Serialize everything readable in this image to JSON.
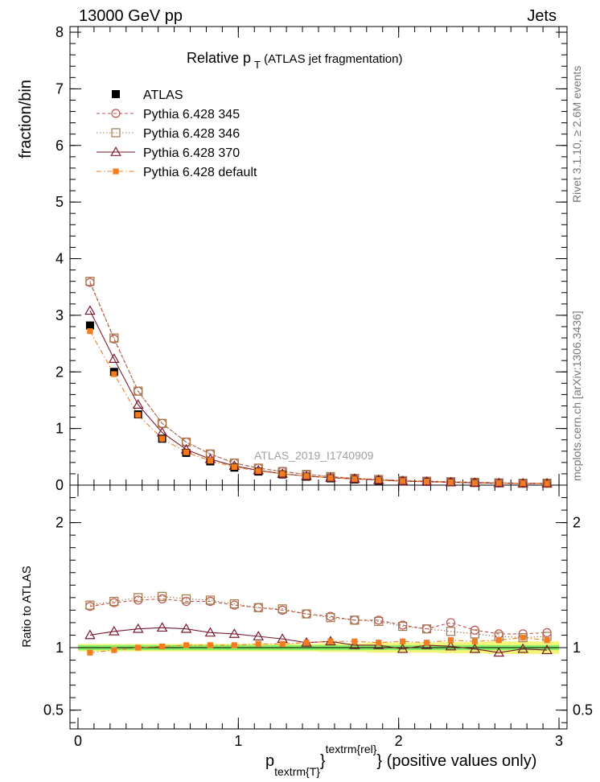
{
  "header": {
    "energy_label": "13000 GeV pp",
    "process_label": "Jets"
  },
  "side_labels": {
    "rivet": "Rivet 3.1.10, ≥ 2.6M events",
    "mcplots": "mcplots.cern.ch [arXiv:1306.3436]"
  },
  "chart_data": {
    "type": "line",
    "title": {
      "main": "Relative p",
      "sub": "T",
      "suffix": " (ATLAS jet fragmentation)"
    },
    "analysis_label": "ATLAS_2019_I1740909",
    "xlabel": {
      "main": "p",
      "sub": "textrm{T}",
      "mid": "}",
      "sup": "textrm{rel}",
      "suffix": "} (positive values only)"
    },
    "ylabel_main": "fraction/bin",
    "ylabel_ratio": "Ratio to ATLAS",
    "xlim": [
      -0.05,
      3.05
    ],
    "ylim_main": [
      0,
      8.1
    ],
    "ylim_ratio": [
      0.35,
      2.3
    ],
    "x_ticks": [
      {
        "value": 0,
        "label": "0"
      },
      {
        "value": 1,
        "label": "1"
      },
      {
        "value": 2,
        "label": "2"
      },
      {
        "value": 3,
        "label": "3"
      }
    ],
    "y_ticks_main": [
      {
        "value": 0,
        "label": "0"
      },
      {
        "value": 1,
        "label": "1"
      },
      {
        "value": 2,
        "label": "2"
      },
      {
        "value": 3,
        "label": "3"
      },
      {
        "value": 4,
        "label": "4"
      },
      {
        "value": 5,
        "label": "5"
      },
      {
        "value": 6,
        "label": "6"
      },
      {
        "value": 7,
        "label": "7"
      },
      {
        "value": 8,
        "label": "8"
      }
    ],
    "y_ticks_ratio": [
      {
        "value": 0.5,
        "label": "0.5"
      },
      {
        "value": 1,
        "label": "1"
      },
      {
        "value": 2,
        "label": "2"
      }
    ],
    "x": [
      0.075,
      0.225,
      0.375,
      0.525,
      0.675,
      0.825,
      0.975,
      1.125,
      1.275,
      1.425,
      1.575,
      1.725,
      1.875,
      2.025,
      2.175,
      2.325,
      2.475,
      2.625,
      2.775,
      2.925
    ],
    "series": [
      {
        "name": "ATLAS",
        "marker": "filled-square",
        "color": "#000000",
        "line": "none",
        "values": [
          2.82,
          2.0,
          1.25,
          0.82,
          0.57,
          0.42,
          0.31,
          0.24,
          0.19,
          0.15,
          0.12,
          0.1,
          0.08,
          0.07,
          0.06,
          0.05,
          0.04,
          0.035,
          0.03,
          0.03
        ],
        "ratio": [
          1,
          1,
          1,
          1,
          1,
          1,
          1,
          1,
          1,
          1,
          1,
          1,
          1,
          1,
          1,
          1,
          1,
          1,
          1,
          1
        ]
      },
      {
        "name": "Pythia 6.428 345",
        "marker": "open-circle",
        "color": "#c0504d",
        "line": "dashed",
        "values": [
          3.58,
          2.58,
          1.66,
          1.09,
          0.76,
          0.55,
          0.39,
          0.3,
          0.24,
          0.19,
          0.15,
          0.12,
          0.1,
          0.08,
          0.07,
          0.06,
          0.05,
          0.04,
          0.033,
          0.033
        ],
        "ratio": [
          1.33,
          1.36,
          1.38,
          1.39,
          1.37,
          1.37,
          1.34,
          1.32,
          1.3,
          1.27,
          1.25,
          1.22,
          1.22,
          1.18,
          1.15,
          1.2,
          1.14,
          1.11,
          1.11,
          1.12
        ]
      },
      {
        "name": "Pythia 6.428 346",
        "marker": "open-square",
        "color": "#a0784a",
        "line": "dotted",
        "values": [
          3.6,
          2.6,
          1.66,
          1.09,
          0.76,
          0.55,
          0.39,
          0.3,
          0.24,
          0.19,
          0.15,
          0.12,
          0.1,
          0.08,
          0.07,
          0.06,
          0.05,
          0.04,
          0.033,
          0.033
        ],
        "ratio": [
          1.34,
          1.37,
          1.4,
          1.41,
          1.39,
          1.38,
          1.35,
          1.32,
          1.31,
          1.27,
          1.24,
          1.22,
          1.21,
          1.17,
          1.15,
          1.13,
          1.11,
          1.09,
          1.08,
          1.09
        ]
      },
      {
        "name": "Pythia 6.428 370",
        "marker": "open-triangle",
        "color": "#7a1a2e",
        "line": "solid",
        "values": [
          3.08,
          2.23,
          1.42,
          0.93,
          0.63,
          0.46,
          0.34,
          0.26,
          0.2,
          0.16,
          0.13,
          0.11,
          0.09,
          0.07,
          0.06,
          0.05,
          0.04,
          0.035,
          0.03,
          0.03
        ],
        "ratio": [
          1.1,
          1.13,
          1.15,
          1.16,
          1.15,
          1.12,
          1.11,
          1.09,
          1.07,
          1.04,
          1.05,
          1.02,
          1.02,
          0.99,
          1.02,
          1.01,
          0.99,
          0.96,
          0.99,
          0.98
        ]
      },
      {
        "name": "Pythia 6.428 default",
        "marker": "filled-small-square",
        "color": "#f47c20",
        "line": "dashdot",
        "values": [
          2.72,
          1.96,
          1.24,
          0.82,
          0.58,
          0.43,
          0.32,
          0.25,
          0.2,
          0.16,
          0.13,
          0.11,
          0.09,
          0.073,
          0.063,
          0.053,
          0.043,
          0.038,
          0.033,
          0.03
        ],
        "ratio": [
          0.96,
          0.98,
          1.0,
          1.01,
          1.02,
          1.02,
          1.02,
          1.03,
          1.03,
          1.04,
          1.05,
          1.05,
          1.04,
          1.05,
          1.04,
          1.06,
          1.05,
          1.06,
          1.08,
          1.06
        ]
      }
    ],
    "uncertainty_bands": {
      "inner_color": "#88ee66",
      "outer_color": "#f4f47a",
      "inner_halfwidth": [
        0.02,
        0.02,
        0.02,
        0.02,
        0.02,
        0.02,
        0.02,
        0.02,
        0.02,
        0.02,
        0.02,
        0.02,
        0.02,
        0.02,
        0.02,
        0.02,
        0.02,
        0.02,
        0.02,
        0.02
      ],
      "outer_halfwidth": [
        0.03,
        0.03,
        0.03,
        0.03,
        0.03,
        0.03,
        0.03,
        0.03,
        0.03,
        0.03,
        0.035,
        0.035,
        0.04,
        0.04,
        0.04,
        0.045,
        0.045,
        0.05,
        0.05,
        0.05
      ]
    }
  }
}
